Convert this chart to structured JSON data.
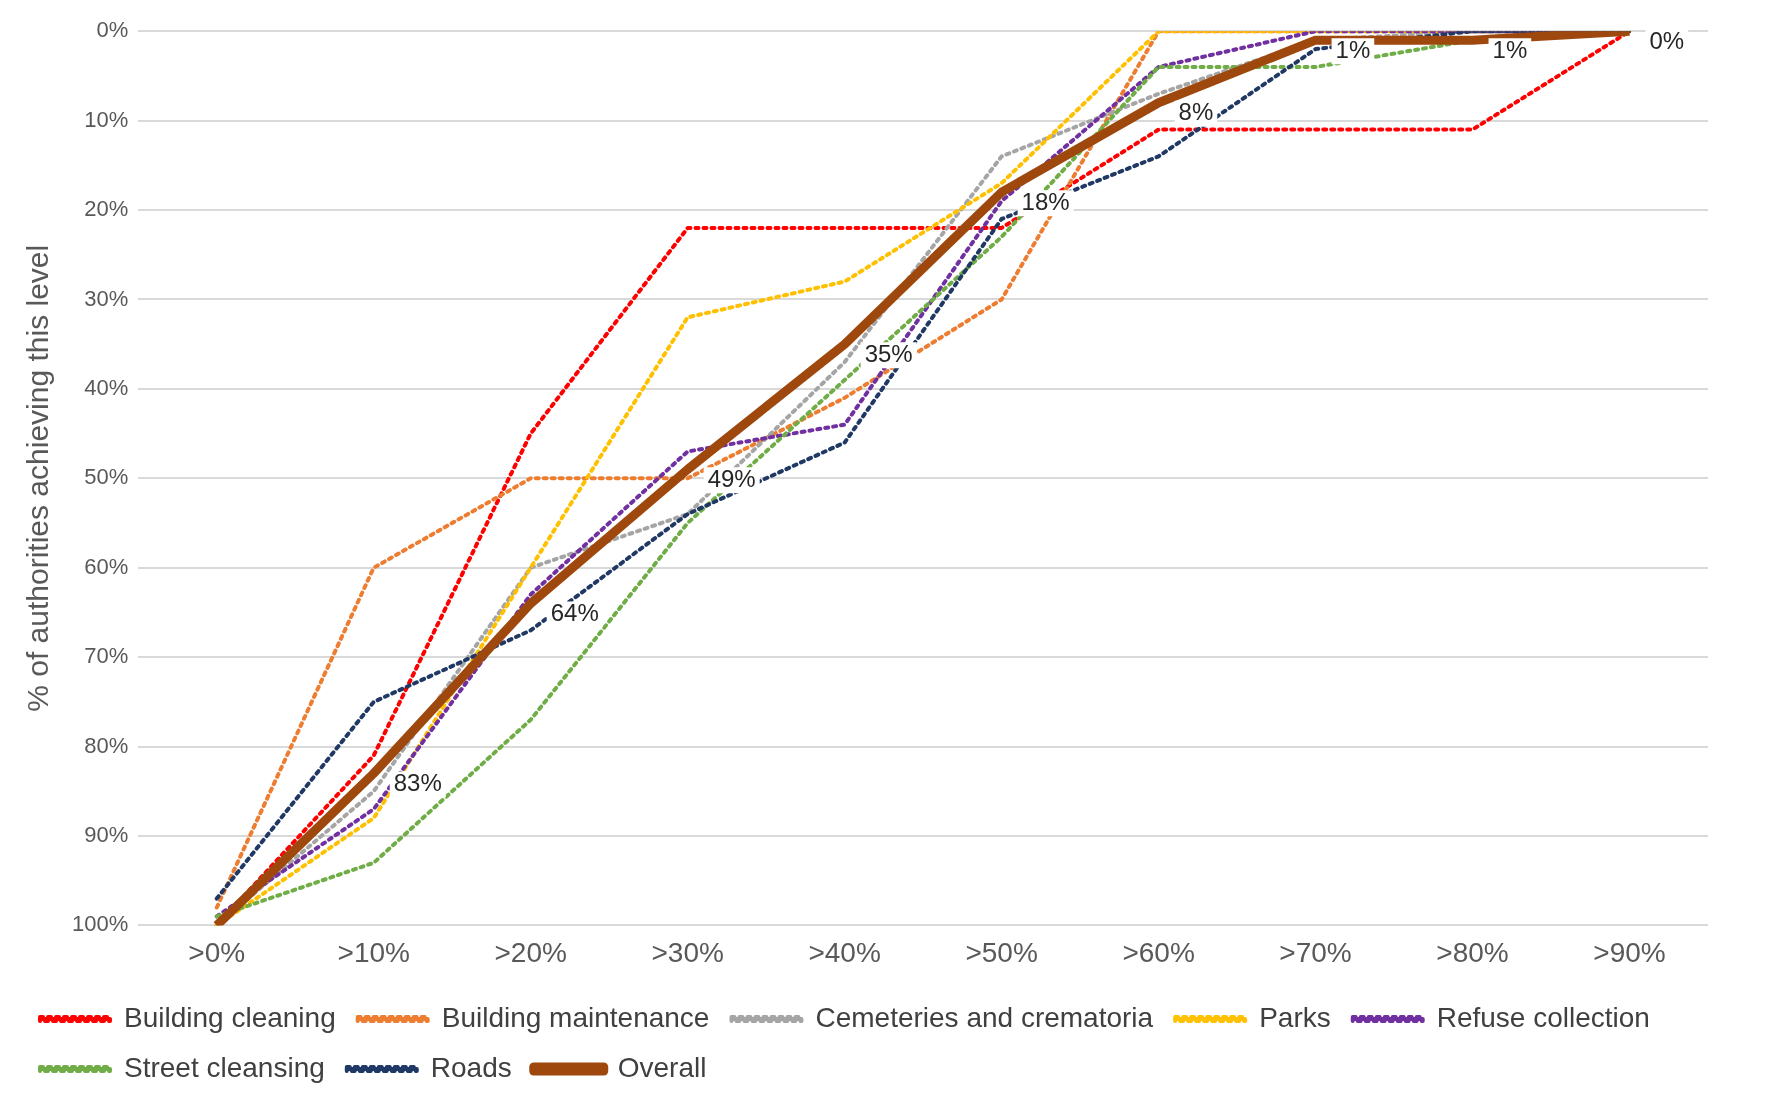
{
  "chart_data": {
    "type": "line",
    "ylabel": "% of authorities achieving this level",
    "categories": [
      ">0%",
      ">10%",
      ">20%",
      ">30%",
      ">40%",
      ">50%",
      ">60%",
      ">70%",
      ">80%",
      ">90%"
    ],
    "ylim": [
      100,
      0
    ],
    "yticks": [
      {
        "value": 0,
        "label": "0%"
      },
      {
        "value": 10,
        "label": "10%"
      },
      {
        "value": 20,
        "label": "20%"
      },
      {
        "value": 30,
        "label": "30%"
      },
      {
        "value": 40,
        "label": "40%"
      },
      {
        "value": 50,
        "label": "50%"
      },
      {
        "value": 60,
        "label": "60%"
      },
      {
        "value": 70,
        "label": "70%"
      },
      {
        "value": 80,
        "label": "80%"
      },
      {
        "value": 90,
        "label": "90%"
      },
      {
        "value": 100,
        "label": "100%"
      }
    ],
    "grid": "y",
    "legend": "bottom",
    "marker": "none",
    "series": [
      {
        "name": "Building cleaning",
        "color": "#ff0000",
        "line_style": "dotted",
        "values": [
          100,
          81,
          45,
          22,
          22,
          22,
          11,
          11,
          11,
          0
        ]
      },
      {
        "name": "Building maintenance",
        "color": "#ed7d31",
        "line_style": "dotted",
        "values": [
          98,
          60,
          50,
          50,
          41,
          30,
          0,
          null,
          null,
          0
        ]
      },
      {
        "name": "Cemeteries and crematoria",
        "color": "#a5a5a5",
        "line_style": "dotted",
        "values": [
          100,
          85,
          60,
          54,
          37,
          14,
          7,
          1,
          0,
          0
        ]
      },
      {
        "name": "Parks",
        "color": "#ffc000",
        "line_style": "dotted",
        "values": [
          100,
          88,
          60,
          32,
          28,
          17,
          0,
          null,
          null,
          0
        ]
      },
      {
        "name": "Refuse collection",
        "color": "#7030a0",
        "line_style": "dotted",
        "values": [
          99,
          87,
          63,
          47,
          44,
          19,
          4,
          0,
          null,
          0
        ]
      },
      {
        "name": "Street cleansing",
        "color": "#70ad47",
        "line_style": "dotted",
        "values": [
          99,
          93,
          77,
          55,
          39,
          23,
          4,
          4,
          1,
          0
        ]
      },
      {
        "name": "Roads",
        "color": "#203864",
        "line_style": "dotted",
        "values": [
          97,
          75,
          67,
          54,
          46,
          21,
          14,
          2,
          0,
          0
        ]
      },
      {
        "name": "Overall",
        "color": "#9e480e",
        "line_style": "solid",
        "values": [
          100,
          83,
          64,
          49,
          35,
          18,
          8,
          1,
          1,
          0
        ],
        "value_labels": [
          null,
          "83%",
          "64%",
          "49%",
          "35%",
          "18%",
          "8%",
          "1%",
          "1%",
          "0%"
        ]
      }
    ]
  }
}
